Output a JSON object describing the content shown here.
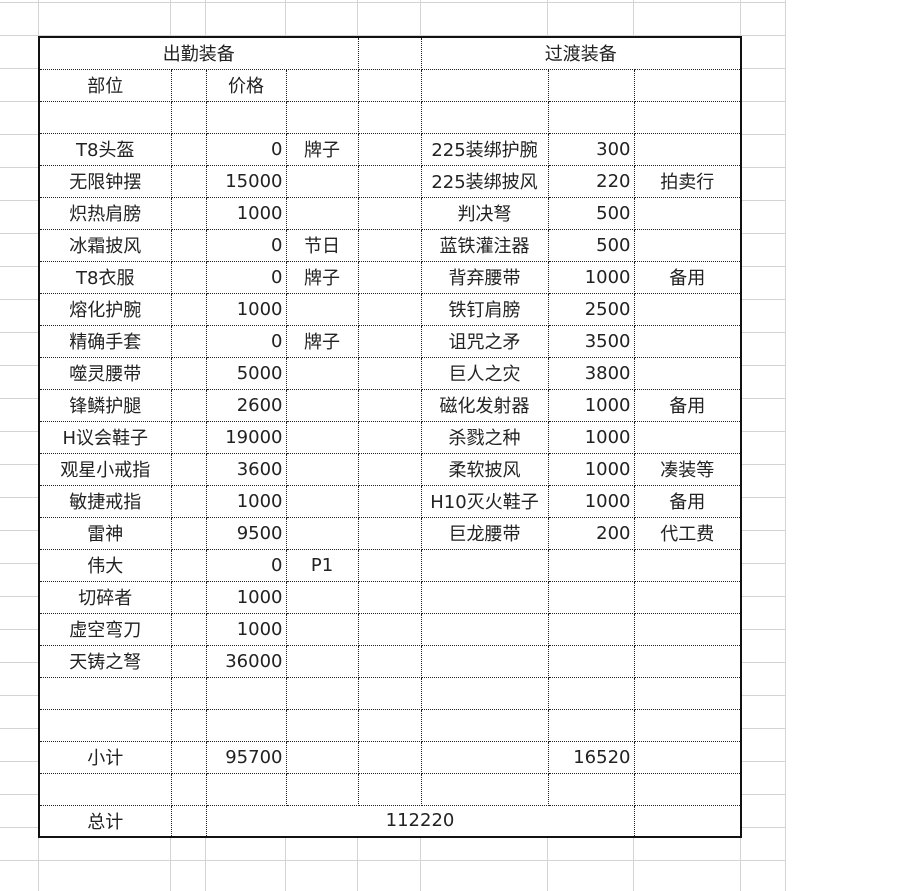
{
  "sheet": {
    "left_title": "出勤装备",
    "right_title": "过渡装备",
    "col_part": "部位",
    "col_price": "价格",
    "rows": [
      {
        "part": "T8头盔",
        "price": "0",
        "note": "牌子",
        "item": "225装绑护腕",
        "cost": "300",
        "remark": ""
      },
      {
        "part": "无限钟摆",
        "price": "15000",
        "note": "",
        "item": "225装绑披风",
        "cost": "220",
        "remark": "拍卖行"
      },
      {
        "part": "炽热肩膀",
        "price": "1000",
        "note": "",
        "item": "判决弩",
        "cost": "500",
        "remark": ""
      },
      {
        "part": "冰霜披风",
        "price": "0",
        "note": "节日",
        "item": "蓝铁灌注器",
        "cost": "500",
        "remark": ""
      },
      {
        "part": "T8衣服",
        "price": "0",
        "note": "牌子",
        "item": "背弃腰带",
        "cost": "1000",
        "remark": "备用"
      },
      {
        "part": "熔化护腕",
        "price": "1000",
        "note": "",
        "item": "铁钉肩膀",
        "cost": "2500",
        "remark": ""
      },
      {
        "part": "精确手套",
        "price": "0",
        "note": "牌子",
        "item": "诅咒之矛",
        "cost": "3500",
        "remark": ""
      },
      {
        "part": "噬灵腰带",
        "price": "5000",
        "note": "",
        "item": "巨人之灾",
        "cost": "3800",
        "remark": ""
      },
      {
        "part": "锋鳞护腿",
        "price": "2600",
        "note": "",
        "item": "磁化发射器",
        "cost": "1000",
        "remark": "备用"
      },
      {
        "part": "H议会鞋子",
        "price": "19000",
        "note": "",
        "item": "杀戮之种",
        "cost": "1000",
        "remark": ""
      },
      {
        "part": "观星小戒指",
        "price": "3600",
        "note": "",
        "item": "柔软披风",
        "cost": "1000",
        "remark": "凑装等"
      },
      {
        "part": "敏捷戒指",
        "price": "1000",
        "note": "",
        "item": "H10灭火鞋子",
        "cost": "1000",
        "remark": "备用"
      },
      {
        "part": "雷神",
        "price": "9500",
        "note": "",
        "item": "巨龙腰带",
        "cost": "200",
        "remark": "代工费"
      },
      {
        "part": "伟大",
        "price": "0",
        "note": "P1",
        "item": "",
        "cost": "",
        "remark": ""
      },
      {
        "part": "切碎者",
        "price": "1000",
        "note": "",
        "item": "",
        "cost": "",
        "remark": ""
      },
      {
        "part": "虚空弯刀",
        "price": "1000",
        "note": "",
        "item": "",
        "cost": "",
        "remark": ""
      },
      {
        "part": "天铸之弩",
        "price": "36000",
        "note": "",
        "item": "",
        "cost": "",
        "remark": ""
      }
    ],
    "subtotal_label": "小计",
    "subtotal_left": "95700",
    "subtotal_right": "16520",
    "total_label": "总计",
    "total_value": "112220"
  }
}
